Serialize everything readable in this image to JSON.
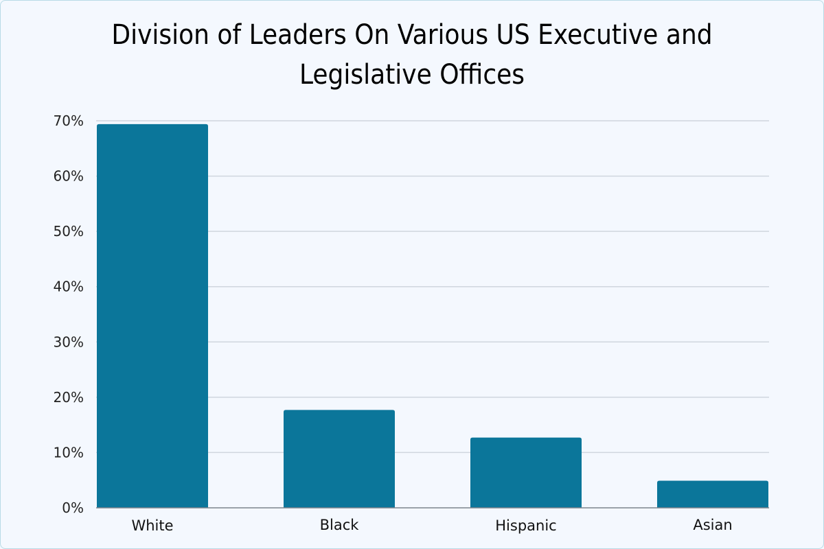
{
  "chart_data": {
    "type": "bar",
    "title_lines": [
      "Division of Leaders On Various US Executive and",
      "Legislative Offices"
    ],
    "categories": [
      "White",
      "Black",
      "Hispanic",
      "Asian"
    ],
    "values": [
      69.4,
      17.7,
      12.7,
      4.9
    ],
    "ylim": [
      0,
      70
    ],
    "yticks": [
      0,
      10,
      20,
      30,
      40,
      50,
      60,
      70
    ],
    "ytick_labels": [
      "0%",
      "10%",
      "20%",
      "30%",
      "40%",
      "50%",
      "60%",
      "70%"
    ],
    "xlabel": "",
    "ylabel": "",
    "grid": true,
    "bar_color": "#0b769a"
  }
}
